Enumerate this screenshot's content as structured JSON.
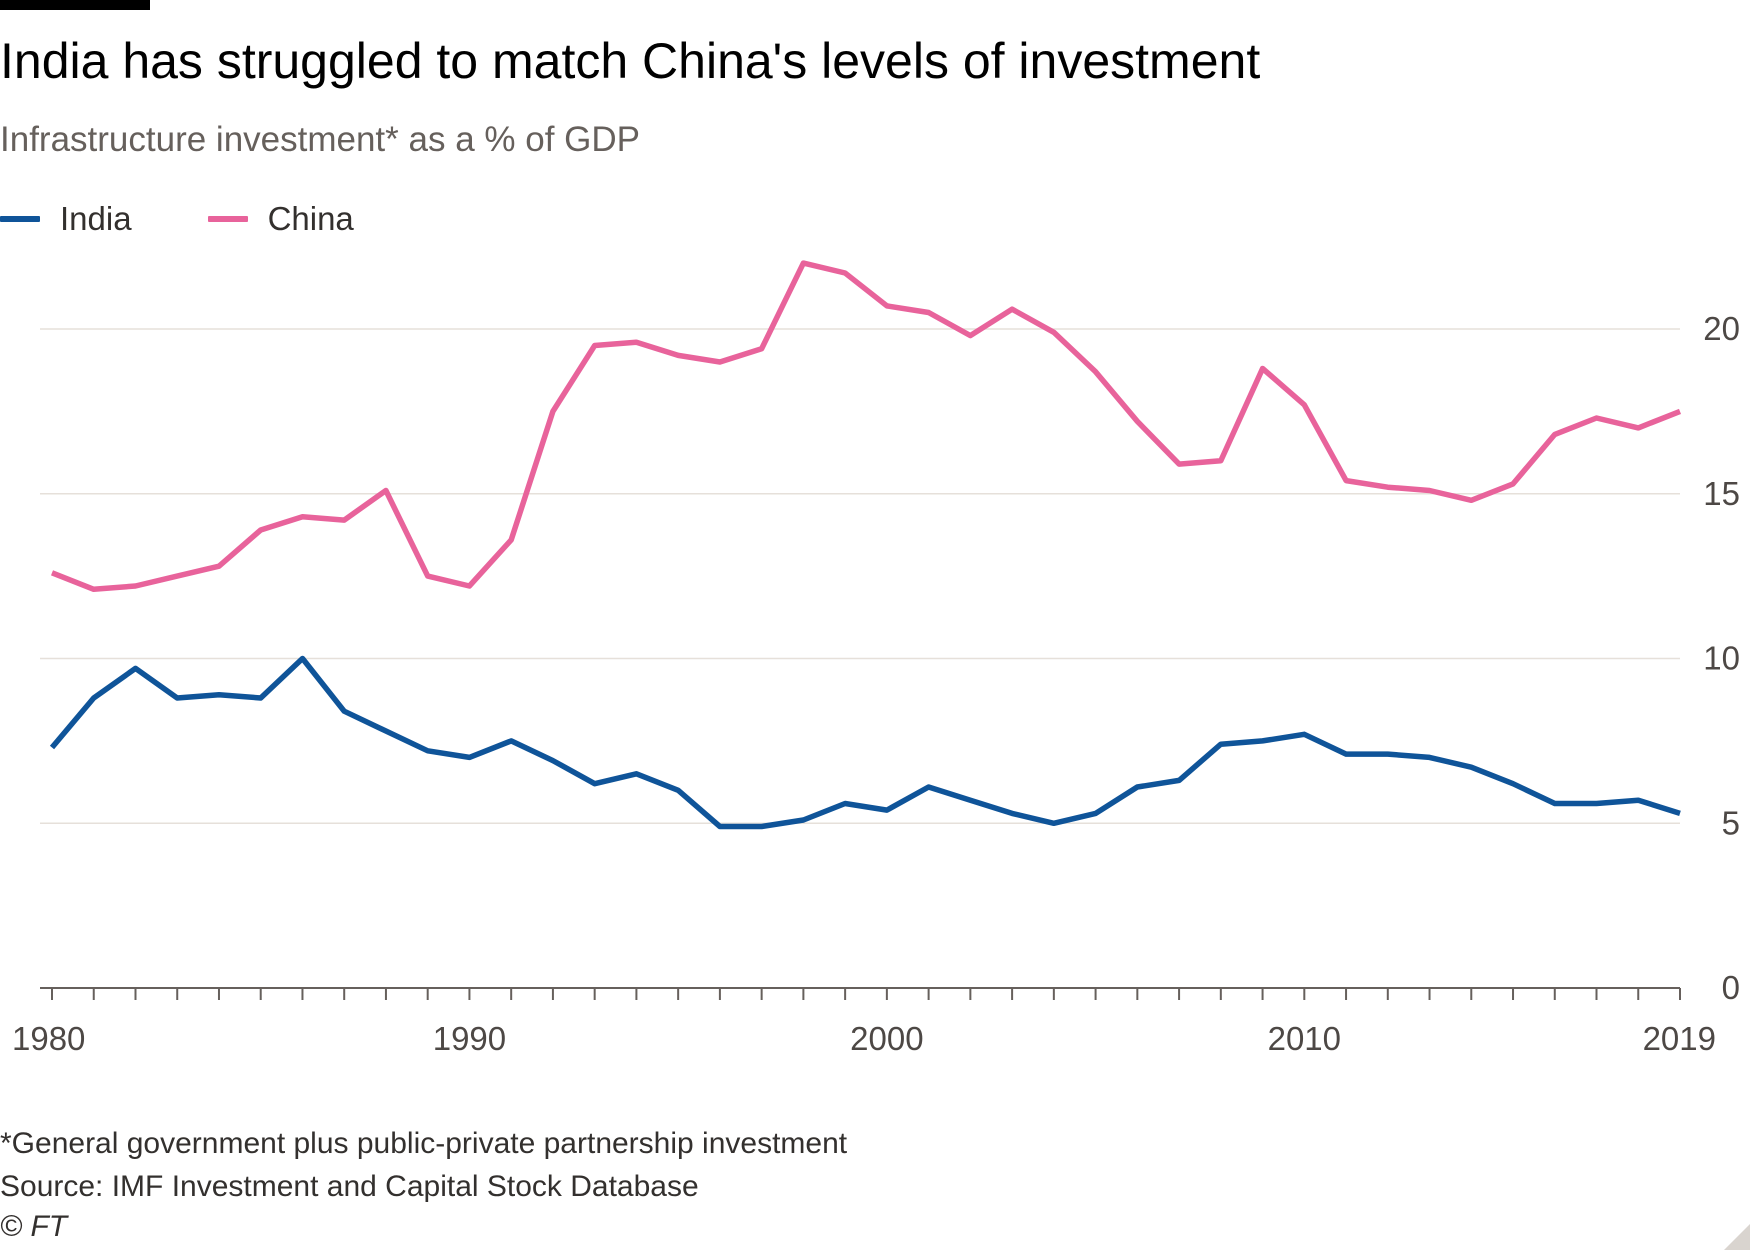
{
  "title": "India has struggled to match China's levels of investment",
  "subtitle": "Infrastructure investment* as a % of GDP",
  "legend": [
    {
      "label": "India",
      "color": "#0f5499"
    },
    {
      "label": "China",
      "color": "#e8639b"
    }
  ],
  "footnotes": {
    "note": "*General government plus public-private partnership investment",
    "source": "Source: IMF Investment and Capital Stock Database",
    "copyright": "© FT"
  },
  "chart_data": {
    "type": "line",
    "title": "India has struggled to match China's levels of investment",
    "subtitle": "Infrastructure investment* as a % of GDP",
    "x": [
      1980,
      1981,
      1982,
      1983,
      1984,
      1985,
      1986,
      1987,
      1988,
      1989,
      1990,
      1991,
      1992,
      1993,
      1994,
      1995,
      1996,
      1997,
      1998,
      1999,
      2000,
      2001,
      2002,
      2003,
      2004,
      2005,
      2006,
      2007,
      2008,
      2009,
      2010,
      2011,
      2012,
      2013,
      2014,
      2015,
      2016,
      2017,
      2018,
      2019
    ],
    "xlim": [
      1980,
      2019
    ],
    "x_ticks": [
      "1980",
      "1990",
      "2000",
      "2010",
      "2019"
    ],
    "ylim": [
      0,
      20
    ],
    "y_ticks": [
      "0",
      "5",
      "10",
      "15",
      "20"
    ],
    "y_axis_side": "right",
    "grid": "horizontal",
    "legend_position": "top-left",
    "series": [
      {
        "name": "India",
        "color": "#0f5499",
        "values": [
          7.3,
          8.8,
          9.7,
          8.8,
          8.9,
          8.8,
          10.0,
          8.4,
          7.8,
          7.2,
          7.0,
          7.5,
          6.9,
          6.2,
          6.5,
          6.0,
          4.9,
          4.9,
          5.1,
          5.6,
          5.4,
          6.1,
          5.7,
          5.3,
          5.0,
          5.3,
          6.1,
          6.3,
          7.4,
          7.5,
          7.7,
          7.1,
          7.1,
          7.0,
          6.7,
          6.2,
          5.6,
          5.6,
          5.7,
          5.3
        ]
      },
      {
        "name": "China",
        "color": "#e8639b",
        "values": [
          12.6,
          12.1,
          12.2,
          12.5,
          12.8,
          13.9,
          14.3,
          14.2,
          15.1,
          12.5,
          12.2,
          13.6,
          17.5,
          19.5,
          19.6,
          19.2,
          19.0,
          19.4,
          22.0,
          21.7,
          20.7,
          20.5,
          19.8,
          20.6,
          19.9,
          18.7,
          17.2,
          15.9,
          16.0,
          18.8,
          17.7,
          15.4,
          15.2,
          15.1,
          14.8,
          15.3,
          16.8,
          17.3,
          17.0,
          17.5
        ]
      }
    ]
  }
}
